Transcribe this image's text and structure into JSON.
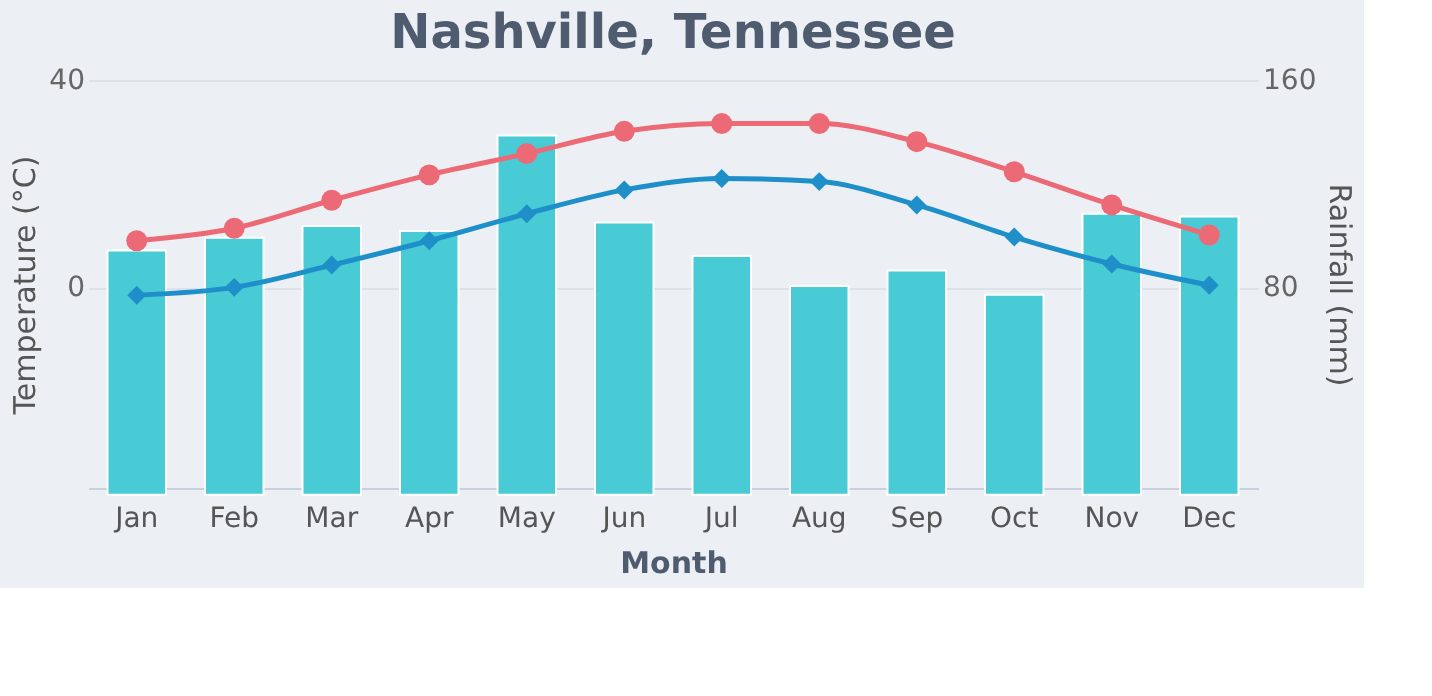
{
  "chart_data": {
    "type": "bar",
    "title": "Nashville, Tennessee",
    "xlabel": "Month",
    "ylabel": "Temperature (°C)",
    "y2label": "Rainfall (mm)",
    "categories": [
      "Jan",
      "Feb",
      "Mar",
      "Apr",
      "May",
      "Jun",
      "Jul",
      "Aug",
      "Sep",
      "Oct",
      "Nov",
      "Dec"
    ],
    "series": [
      {
        "axis": "y2",
        "color": "#48cbd4",
        "values": [
          94.2,
          99.1,
          103.7,
          101.7,
          138.6,
          105.0,
          92.1,
          80.5,
          86.5,
          77.2,
          108.4,
          107.3
        ]
      },
      {
        "type": "line",
        "color": "#ec6a76",
        "marker": "circle",
        "values": [
          9.0,
          11.4,
          16.8,
          21.7,
          25.8,
          30.1,
          31.6,
          31.6,
          28.1,
          22.3,
          15.9,
          10.1
        ]
      },
      {
        "type": "line",
        "color": "#1f8fc9",
        "marker": "diamond",
        "values": [
          -1.5,
          0,
          4.3,
          9.0,
          14.2,
          18.8,
          21.0,
          20.4,
          15.9,
          9.7,
          4.5,
          0.4
        ]
      }
    ],
    "ylim": [
      -38.7,
      40
    ],
    "yticks": [
      0,
      40
    ],
    "y2lim": [
      2.6,
      160
    ],
    "y2ticks": [
      80,
      160
    ],
    "grid": "y",
    "line_style": "solid"
  }
}
